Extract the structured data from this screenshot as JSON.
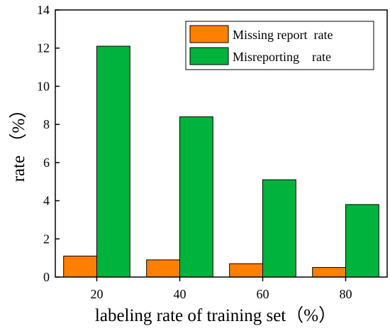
{
  "chart_data": {
    "type": "bar",
    "categories": [
      "20",
      "40",
      "60",
      "80"
    ],
    "series": [
      {
        "name": "Missing report  rate",
        "values": [
          1.1,
          0.9,
          0.7,
          0.5
        ],
        "color": "#ff7f00"
      },
      {
        "name": "Misreporting    rate",
        "values": [
          12.1,
          8.4,
          5.1,
          3.8
        ],
        "color": "#00b33c"
      }
    ],
    "title": "",
    "xlabel": "labeling rate of training set（%）",
    "ylabel": "rate （%）",
    "ylim": [
      0,
      14
    ],
    "yticks": [
      0,
      2,
      4,
      6,
      8,
      10,
      12,
      14
    ],
    "grid": false,
    "legend_position": "top-right"
  }
}
